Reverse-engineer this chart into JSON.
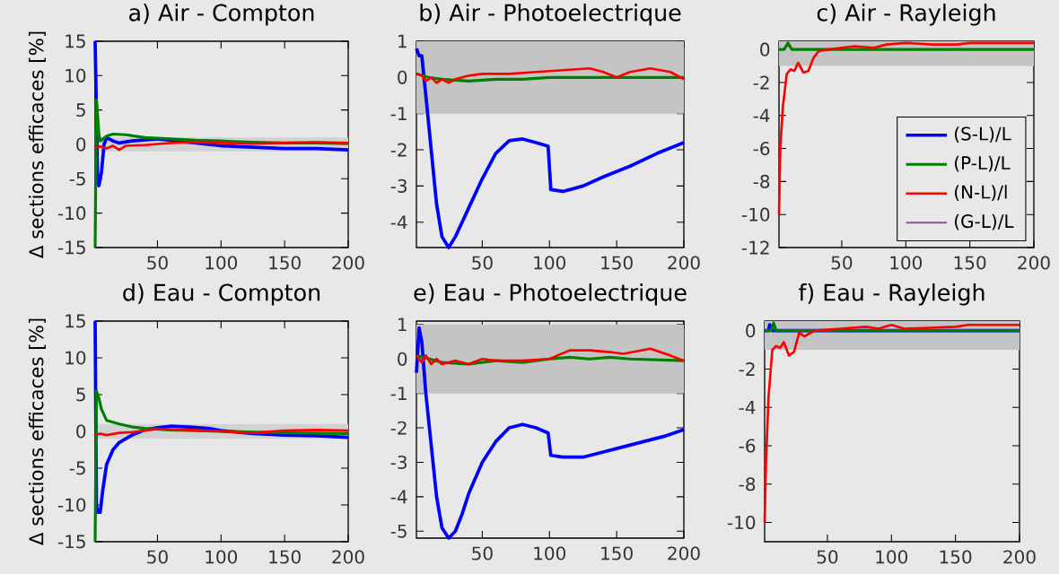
{
  "chart_data": [
    {
      "type": "line",
      "title": "a) Air - Compton",
      "ylabel": "Δ sections efficaces [%]",
      "xlim": [
        1,
        200
      ],
      "xticks": [
        50,
        100,
        150,
        200
      ],
      "ylim": [
        -15,
        15
      ],
      "yticks": [
        -15,
        -10,
        -5,
        0,
        5,
        10,
        15
      ],
      "bands": [
        {
          "axis": "y",
          "from": -1,
          "to": 1,
          "color": "#d2d2d2"
        }
      ],
      "series": [
        {
          "color": "#0000ff",
          "x": [
            1,
            3,
            4,
            6,
            8,
            10,
            15,
            20,
            30,
            50,
            75,
            100,
            125,
            150,
            175,
            200
          ],
          "values": [
            15,
            -5.5,
            -6,
            -4,
            0,
            1,
            0.5,
            0.2,
            0.5,
            0.8,
            0.3,
            -0.2,
            -0.4,
            -0.6,
            -0.6,
            -0.8
          ]
        },
        {
          "color": "#008000",
          "x": [
            1,
            2,
            4,
            5,
            10,
            15,
            25,
            40,
            60,
            80,
            100,
            125,
            150,
            175,
            200
          ],
          "values": [
            -15,
            6.5,
            1.5,
            0.5,
            1.2,
            1.5,
            1.4,
            1.0,
            0.8,
            0.6,
            0.5,
            0.3,
            0.2,
            0.2,
            0.1
          ]
        },
        {
          "color": "#ff0000",
          "x": [
            1,
            5,
            10,
            15,
            20,
            25,
            40,
            60,
            80,
            100,
            125,
            150,
            175,
            200
          ],
          "values": [
            -0.5,
            -0.3,
            -0.6,
            -0.2,
            -0.8,
            -0.2,
            -0.1,
            0.2,
            0.3,
            0.2,
            0.1,
            0.2,
            0.3,
            0.2
          ]
        }
      ]
    },
    {
      "type": "line",
      "title": "b) Air - Photoelectrique",
      "xlim": [
        1,
        200
      ],
      "xticks": [
        50,
        100,
        150,
        200
      ],
      "ylim": [
        -4.7,
        1
      ],
      "yticks": [
        -4,
        -3,
        -2,
        -1,
        0,
        1
      ],
      "bands": [
        {
          "axis": "y",
          "from": -1,
          "to": 1,
          "color": "#c4c4c4"
        }
      ],
      "series": [
        {
          "color": "#0000ff",
          "x": [
            1,
            3,
            5,
            8,
            12,
            16,
            20,
            25,
            30,
            40,
            50,
            60,
            70,
            80,
            90,
            99,
            101,
            110,
            125,
            140,
            160,
            180,
            200
          ],
          "values": [
            0.8,
            0.6,
            0.6,
            -0.5,
            -2,
            -3.5,
            -4.4,
            -4.7,
            -4.4,
            -3.6,
            -2.8,
            -2.1,
            -1.75,
            -1.7,
            -1.8,
            -1.9,
            -3.1,
            -3.15,
            -3.0,
            -2.75,
            -2.45,
            -2.1,
            -1.8
          ]
        },
        {
          "color": "#008000",
          "x": [
            1,
            10,
            20,
            40,
            60,
            80,
            100,
            120,
            150,
            175,
            200
          ],
          "values": [
            0.1,
            0.0,
            -0.05,
            -0.1,
            -0.05,
            -0.05,
            0,
            0,
            0,
            0,
            0
          ]
        },
        {
          "color": "#ff0000",
          "x": [
            1,
            5,
            8,
            12,
            16,
            20,
            25,
            30,
            40,
            50,
            70,
            90,
            110,
            130,
            140,
            150,
            160,
            175,
            190,
            200
          ],
          "values": [
            0.1,
            0.05,
            -0.1,
            0.0,
            -0.15,
            -0.05,
            -0.15,
            -0.05,
            0.05,
            0.1,
            0.1,
            0.15,
            0.2,
            0.25,
            0.15,
            0.0,
            0.15,
            0.25,
            0.15,
            -0.05
          ]
        }
      ]
    },
    {
      "type": "line",
      "title": "c) Air - Rayleigh",
      "xlim": [
        1,
        200
      ],
      "xticks": [
        50,
        100,
        150,
        200
      ],
      "ylim": [
        -12,
        0.5
      ],
      "yticks": [
        -12,
        -10,
        -8,
        -6,
        -4,
        -2,
        0
      ],
      "legend": "bottom right",
      "bands": [
        {
          "axis": "y",
          "from": -1,
          "to": 0.5,
          "color": "#c4c4c4"
        }
      ],
      "series": [
        {
          "name": "(S-L)/L",
          "color": "#0000ff",
          "values": [
            null
          ]
        },
        {
          "name": "(P-L)/L",
          "color": "#008000",
          "x": [
            1,
            5,
            8,
            11,
            200
          ],
          "values": [
            0,
            0,
            0.4,
            0,
            0
          ]
        },
        {
          "name": "(N-L)/l",
          "color": "#ff0000",
          "x": [
            1,
            2,
            4,
            7,
            10,
            13,
            16,
            20,
            24,
            28,
            32,
            40,
            50,
            60,
            75,
            85,
            100,
            120,
            140,
            150,
            175,
            200
          ],
          "values": [
            -10,
            -6,
            -3.5,
            -1.5,
            -1.2,
            -1.3,
            -0.8,
            -1.4,
            -1.3,
            -0.5,
            -0.1,
            0.0,
            0.1,
            0.2,
            0.1,
            0.3,
            0.4,
            0.3,
            0.3,
            0.4,
            0.4,
            0.4
          ]
        },
        {
          "name": "(G-L)/L",
          "color": "#9050a0",
          "values": [
            null
          ]
        }
      ]
    },
    {
      "type": "line",
      "title": "d) Eau - Compton",
      "ylabel": "Δ sections efficaces [%]",
      "xlim": [
        1,
        200
      ],
      "xticks": [
        50,
        100,
        150,
        200
      ],
      "ylim": [
        -15,
        15
      ],
      "yticks": [
        -15,
        -10,
        -5,
        0,
        5,
        10,
        15
      ],
      "bands": [
        {
          "axis": "y",
          "from": -1,
          "to": 1,
          "color": "#d2d2d2"
        }
      ],
      "series": [
        {
          "color": "#0000ff",
          "x": [
            1,
            2,
            3,
            5,
            7,
            10,
            15,
            20,
            30,
            40,
            50,
            60,
            75,
            90,
            100,
            125,
            150,
            175,
            200
          ],
          "values": [
            15,
            -10,
            -11,
            -11,
            -8,
            -4.5,
            -2.5,
            -1.5,
            -0.5,
            0.2,
            0.5,
            0.7,
            0.6,
            0.4,
            0.1,
            -0.3,
            -0.5,
            -0.6,
            -0.8
          ]
        },
        {
          "color": "#008000",
          "x": [
            1,
            2,
            4,
            6,
            10,
            20,
            30,
            40,
            60,
            80,
            100,
            125,
            150,
            200
          ],
          "values": [
            -15,
            5.5,
            4.5,
            3,
            1.5,
            1.0,
            0.6,
            0.4,
            0.2,
            0.1,
            0.0,
            -0.1,
            -0.2,
            -0.3
          ]
        },
        {
          "color": "#ff0000",
          "x": [
            1,
            5,
            10,
            20,
            30,
            50,
            75,
            100,
            125,
            150,
            175,
            200
          ],
          "values": [
            -0.5,
            -0.3,
            -0.5,
            -0.2,
            -0.1,
            0.3,
            0.2,
            0.0,
            -0.2,
            0.1,
            0.2,
            0.1
          ]
        }
      ]
    },
    {
      "type": "line",
      "title": "e) Eau - Photoelectrique",
      "xlim": [
        1,
        200
      ],
      "xticks": [
        50,
        100,
        150,
        200
      ],
      "ylim": [
        -5.2,
        1.1
      ],
      "yticks": [
        -5,
        -4,
        -3,
        -2,
        -1,
        0,
        1
      ],
      "bands": [
        {
          "axis": "y",
          "from": -1,
          "to": 1,
          "color": "#c4c4c4"
        }
      ],
      "series": [
        {
          "color": "#0000ff",
          "x": [
            1,
            3,
            5,
            8,
            12,
            16,
            20,
            25,
            30,
            35,
            40,
            50,
            60,
            70,
            80,
            90,
            99,
            101,
            110,
            125,
            140,
            150,
            170,
            185,
            200
          ],
          "values": [
            -0.4,
            0.9,
            0.5,
            -1.0,
            -2.5,
            -4,
            -4.9,
            -5.2,
            -5.0,
            -4.5,
            -3.9,
            -3.0,
            -2.4,
            -2.0,
            -1.9,
            -2.0,
            -2.15,
            -2.8,
            -2.85,
            -2.85,
            -2.7,
            -2.6,
            -2.4,
            -2.25,
            -2.05
          ]
        },
        {
          "color": "#008000",
          "x": [
            1,
            20,
            40,
            60,
            80,
            100,
            115,
            130,
            145,
            160,
            200
          ],
          "values": [
            0.1,
            -0.1,
            -0.15,
            -0.05,
            -0.1,
            0.0,
            0.05,
            0.0,
            0.05,
            0.0,
            -0.05
          ]
        },
        {
          "color": "#ff0000",
          "x": [
            1,
            5,
            8,
            12,
            16,
            20,
            30,
            40,
            50,
            60,
            80,
            100,
            115,
            130,
            145,
            155,
            175,
            190,
            200
          ],
          "values": [
            0.1,
            -0.1,
            0.1,
            -0.15,
            0.0,
            -0.15,
            -0.05,
            -0.15,
            0.0,
            -0.05,
            -0.05,
            0.0,
            0.25,
            0.25,
            0.2,
            0.15,
            0.3,
            0.1,
            -0.05
          ]
        }
      ]
    },
    {
      "type": "line",
      "title": "f) Eau - Rayleigh",
      "xlim": [
        1,
        200
      ],
      "xticks": [
        50,
        100,
        150,
        200
      ],
      "ylim": [
        -11,
        0.5
      ],
      "yticks": [
        -10,
        -8,
        -6,
        -4,
        -2,
        0
      ],
      "bands": [
        {
          "axis": "y",
          "from": -1,
          "to": 0.5,
          "color": "#c4c4c4"
        }
      ],
      "series": [
        {
          "color": "#0000ff",
          "x": [
            1,
            4,
            5,
            7,
            200
          ],
          "values": [
            0,
            0,
            0.3,
            0,
            0
          ]
        },
        {
          "color": "#008000",
          "x": [
            1,
            6,
            8,
            10,
            200
          ],
          "values": [
            0,
            0,
            0.4,
            0,
            0
          ]
        },
        {
          "color": "#ff0000",
          "x": [
            1,
            2,
            4,
            7,
            10,
            13,
            16,
            20,
            24,
            28,
            32,
            40,
            60,
            80,
            90,
            100,
            110,
            150,
            160,
            200
          ],
          "values": [
            -10,
            -7,
            -3.5,
            -1,
            -0.8,
            -0.9,
            -0.6,
            -1.3,
            -1.1,
            -0.1,
            -0.3,
            0,
            0.1,
            0.2,
            0.1,
            0.3,
            0.1,
            0.2,
            0.3,
            0.3
          ]
        }
      ]
    }
  ]
}
